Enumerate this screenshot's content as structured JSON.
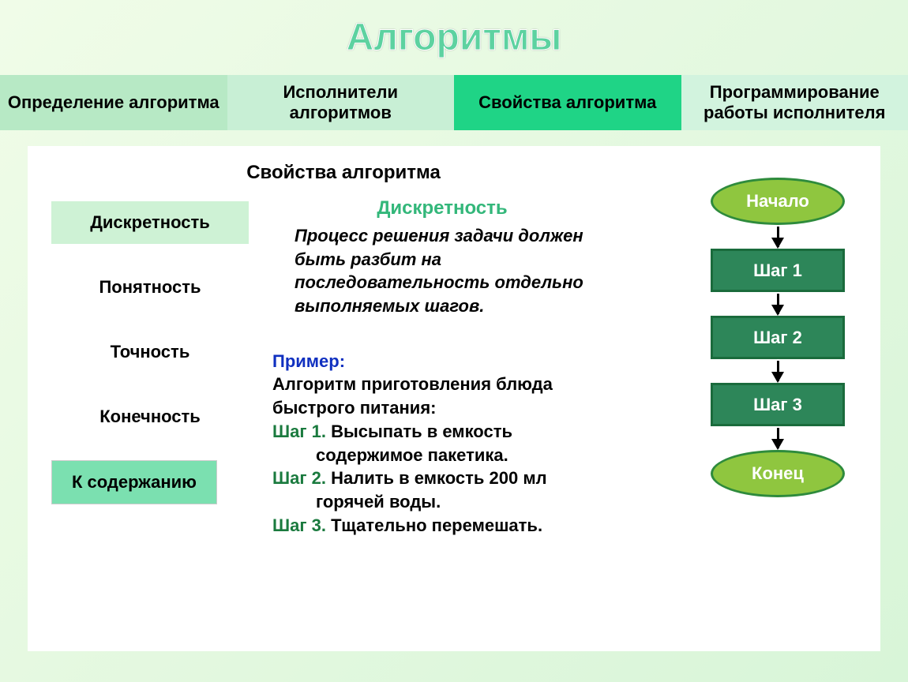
{
  "title": "Алгоритмы",
  "tabs": [
    {
      "label": "Определение алгоритма",
      "active": false
    },
    {
      "label": "Исполнители алгоритмов",
      "active": false
    },
    {
      "label": "Свойства алгоритма",
      "active": true
    },
    {
      "label": "Программирование работы исполнителя",
      "active": false
    }
  ],
  "section_title": "Свойства алгоритма",
  "properties": [
    {
      "label": "Дискретность",
      "active": true
    },
    {
      "label": "Понятность",
      "active": false
    },
    {
      "label": "Точность",
      "active": false
    },
    {
      "label": "Конечность",
      "active": false
    }
  ],
  "back_button": "К содержанию",
  "detail": {
    "title": "Дискретность",
    "description": "Процесс решения задачи должен быть разбит на последовательность отдельно выполняемых шагов.",
    "example_label": "Пример:",
    "example_intro": "Алгоритм приготовления блюда быстрого питания:",
    "steps": [
      {
        "label": "Шаг 1.",
        "line1": "Высыпать в емкость",
        "line2": "содержимое пакетика."
      },
      {
        "label": "Шаг 2.",
        "line1": "Налить в емкость 200 мл",
        "line2": "горячей воды."
      },
      {
        "label": "Шаг 3.",
        "line1": "Тщательно перемешать.",
        "line2": ""
      }
    ]
  },
  "flowchart": {
    "type": "flowchart",
    "nodes": [
      {
        "label": "Начало",
        "shape": "ellipse",
        "fill": "#8fc63f",
        "border": "#2e8b3c",
        "text_color": "#ffffff"
      },
      {
        "label": "Шаг 1",
        "shape": "rect",
        "fill": "#2d8659",
        "border": "#1a6b3c",
        "text_color": "#ffffff"
      },
      {
        "label": "Шаг 2",
        "shape": "rect",
        "fill": "#2d8659",
        "border": "#1a6b3c",
        "text_color": "#ffffff"
      },
      {
        "label": "Шаг 3",
        "shape": "rect",
        "fill": "#2d8659",
        "border": "#1a6b3c",
        "text_color": "#ffffff"
      },
      {
        "label": "Конец",
        "shape": "ellipse",
        "fill": "#8fc63f",
        "border": "#2e8b3c",
        "text_color": "#ffffff"
      }
    ],
    "arrow_color": "#000000"
  },
  "colors": {
    "page_bg_start": "#f0fce8",
    "page_bg_end": "#d8f5d8",
    "tab_inactive": "#c8efd5",
    "tab_active": "#1fd486",
    "property_active_bg": "#cef2d5",
    "back_btn_bg": "#7be0b0",
    "detail_title": "#33b77a",
    "example_label": "#1030c0",
    "step_label": "#1a7a3e",
    "title_color": "#5dd2a0"
  }
}
